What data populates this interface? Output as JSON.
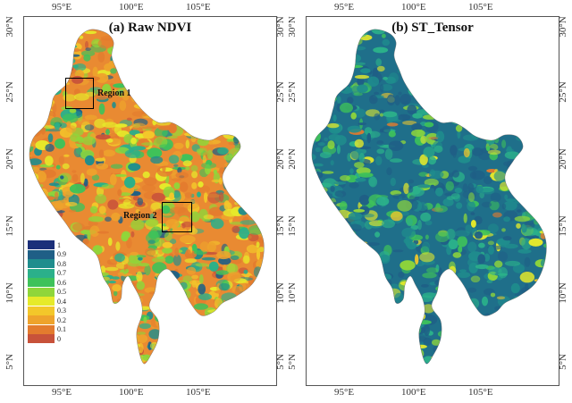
{
  "panels": [
    {
      "title": "(a) Raw NDVI"
    },
    {
      "title": "(b) ST_Tensor"
    }
  ],
  "axes": {
    "x_ticks": [
      "95°E",
      "100°E",
      "105°E"
    ],
    "y_ticks": [
      "30°N",
      "25°N",
      "20°N",
      "15°N",
      "10°N",
      "5°N"
    ]
  },
  "regions": [
    {
      "label": "Region 1"
    },
    {
      "label": "Region 2"
    }
  ],
  "legend": {
    "items": [
      {
        "label": "1",
        "color": "#1b2f7a"
      },
      {
        "label": "0.9",
        "color": "#1f5f86"
      },
      {
        "label": "0.8",
        "color": "#1f8d8d"
      },
      {
        "label": "0.7",
        "color": "#2bb08a"
      },
      {
        "label": "0.6",
        "color": "#3ec25a"
      },
      {
        "label": "0.5",
        "color": "#8fd63a"
      },
      {
        "label": "0.4",
        "color": "#e6ea2a"
      },
      {
        "label": "0.3",
        "color": "#f3c72a"
      },
      {
        "label": "0.2",
        "color": "#eea32c"
      },
      {
        "label": "0.1",
        "color": "#e37b2e"
      },
      {
        "label": "0",
        "color": "#c8523a"
      }
    ]
  },
  "colors": {
    "raw_base": "#e98a32",
    "tensor_base": "#1f6f8a"
  }
}
